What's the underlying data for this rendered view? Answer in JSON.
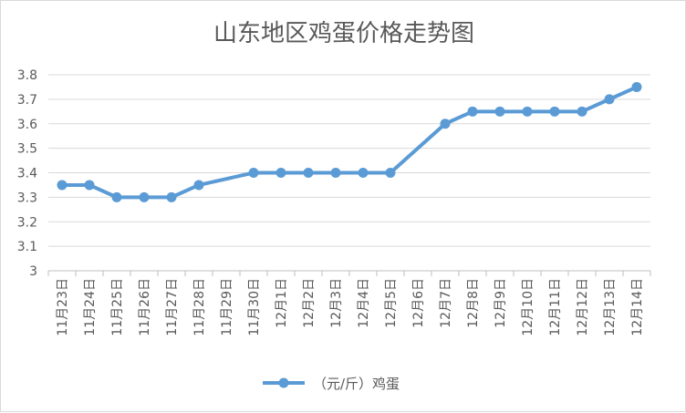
{
  "chart_data": {
    "type": "line",
    "title": "山东地区鸡蛋价格走势图",
    "xlabel": "",
    "ylabel": "",
    "ylim": [
      3,
      3.8
    ],
    "yticks": [
      "3",
      "3.1",
      "3.2",
      "3.3",
      "3.4",
      "3.5",
      "3.6",
      "3.7",
      "3.8"
    ],
    "grid": true,
    "legend_position": "bottom",
    "categories": [
      "11月23日",
      "11月24日",
      "11月25日",
      "11月26日",
      "11月27日",
      "11月28日",
      "11月29日",
      "11月30日",
      "12月1日",
      "12月2日",
      "12月3日",
      "12月4日",
      "12月5日",
      "12月6日",
      "12月7日",
      "12月8日",
      "12月9日",
      "12月10日",
      "12月11日",
      "12月12日",
      "12月13日",
      "12月14日"
    ],
    "series": [
      {
        "name": "（元/斤）鸡蛋",
        "color": "#5b9bd5",
        "values": [
          3.35,
          3.35,
          3.3,
          3.3,
          3.3,
          3.35,
          null,
          3.4,
          3.4,
          3.4,
          3.4,
          3.4,
          3.4,
          null,
          3.6,
          3.65,
          3.65,
          3.65,
          3.65,
          3.65,
          3.7,
          3.75
        ]
      }
    ]
  }
}
